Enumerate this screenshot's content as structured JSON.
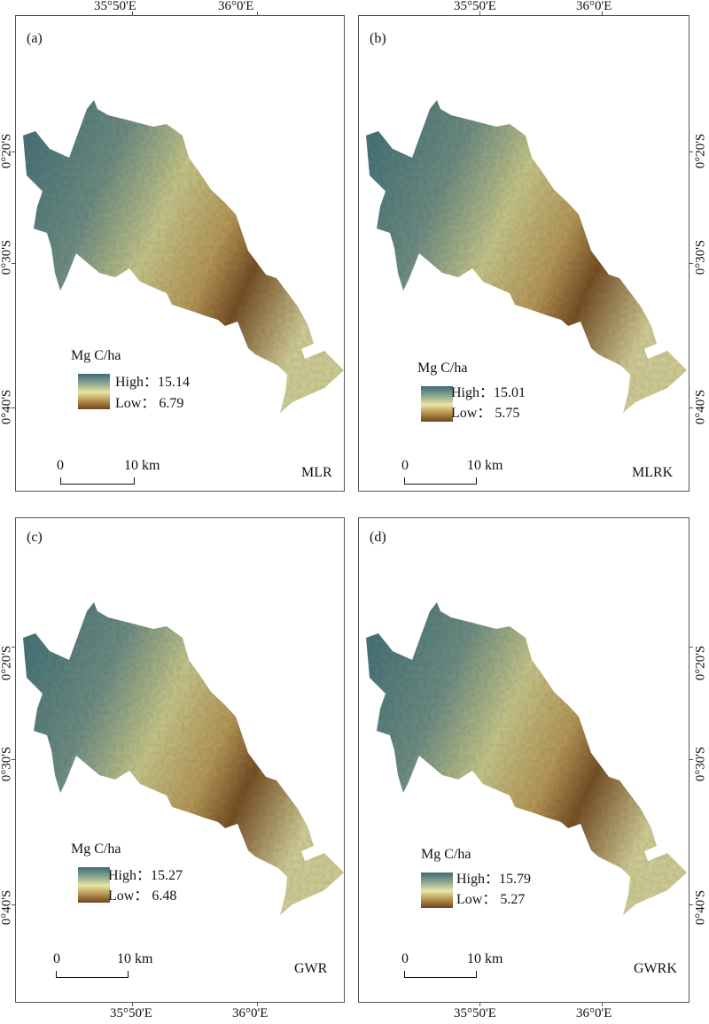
{
  "top_axis": [
    "35°50'E",
    "36°0'E"
  ],
  "bottom_axis": [
    "35°50'E",
    "36°0'E"
  ],
  "lat_labels": [
    "0°20'S",
    "0°30'S",
    "0°40'S"
  ],
  "colors": {
    "high": "#3e6b78",
    "mid": "#e9e6a4",
    "low": "#6c4520"
  },
  "panels": [
    {
      "tag": "(a)",
      "model": "MLR",
      "legend_title": "Mg C/ha",
      "high_text": "High：15.14",
      "low_text": "Low： 6.79",
      "high": 15.14,
      "low": 6.79,
      "scale_zero": "0",
      "scale_end": "10 km"
    },
    {
      "tag": "(b)",
      "model": "MLRK",
      "legend_title": "Mg C/ha",
      "high_text": "High：15.01",
      "low_text": "Low： 5.75",
      "high": 15.01,
      "low": 5.75,
      "scale_zero": "0",
      "scale_end": "10 km"
    },
    {
      "tag": "(c)",
      "model": "GWR",
      "legend_title": "Mg C/ha",
      "high_text": "High：15.27",
      "low_text": "Low： 6.48",
      "high": 15.27,
      "low": 6.48,
      "scale_zero": "0",
      "scale_end": "10 km"
    },
    {
      "tag": "(d)",
      "model": "GWRK",
      "legend_title": "Mg C/ha",
      "high_text": "High：15.79",
      "low_text": "Low： 5.27",
      "high": 15.79,
      "low": 5.27,
      "scale_zero": "0",
      "scale_end": "10 km"
    }
  ]
}
